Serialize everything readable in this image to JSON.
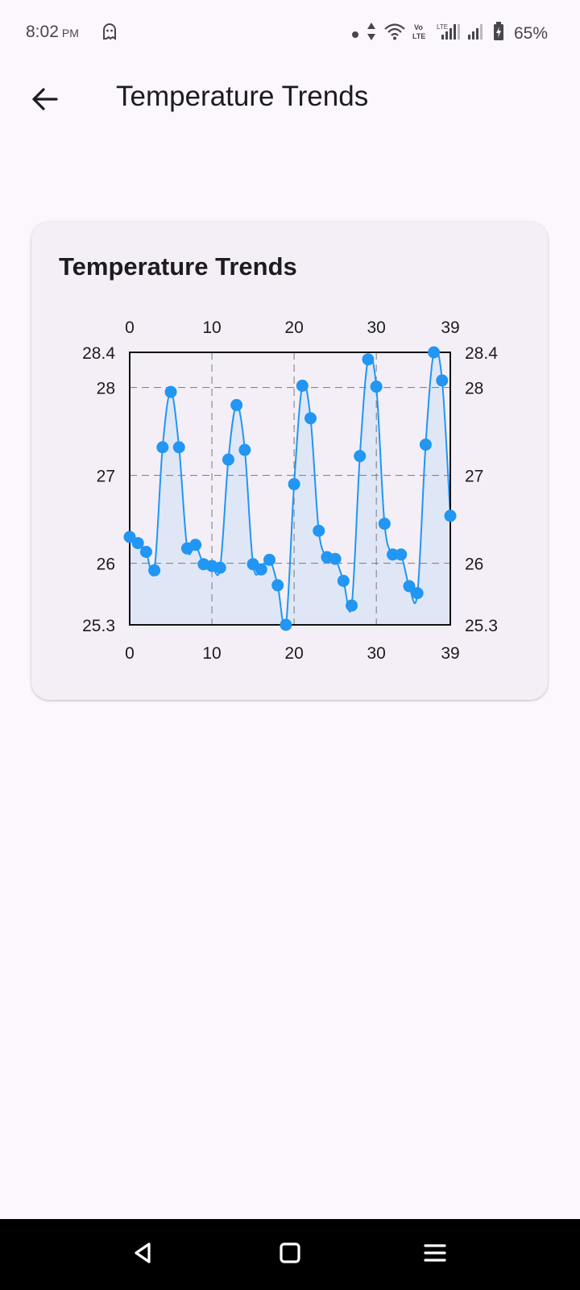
{
  "status_bar": {
    "time": "8:02",
    "ampm": "PM",
    "battery": "65%",
    "icons": [
      "ghost-icon",
      "dot-icon",
      "data-arrows-icon",
      "wifi-icon",
      "volte-icon",
      "lte-signal-icon",
      "signal-icon",
      "battery-charging-icon"
    ]
  },
  "app_bar": {
    "title": "Temperature Trends",
    "back_icon": "arrow-left-icon"
  },
  "card": {
    "title": "Temperature Trends"
  },
  "chart_data": {
    "type": "line",
    "title": "Temperature Trends",
    "xlabel": "",
    "ylabel": "",
    "x": [
      0,
      1,
      2,
      3,
      4,
      5,
      6,
      7,
      8,
      9,
      10,
      11,
      12,
      13,
      14,
      15,
      16,
      17,
      18,
      19,
      20,
      21,
      22,
      23,
      24,
      25,
      26,
      27,
      28,
      29,
      30,
      31,
      32,
      33,
      34,
      35,
      36,
      37,
      38,
      39
    ],
    "series": [
      {
        "values": [
          26.3,
          26.23,
          26.13,
          25.92,
          27.32,
          27.95,
          27.32,
          26.17,
          26.21,
          25.99,
          25.97,
          25.95,
          27.18,
          27.8,
          27.29,
          25.99,
          25.93,
          26.04,
          25.75,
          25.3,
          26.9,
          28.02,
          27.65,
          26.37,
          26.07,
          26.05,
          25.8,
          25.52,
          27.22,
          28.32,
          28.01,
          26.45,
          26.1,
          26.1,
          25.74,
          25.66,
          27.35,
          28.4,
          28.08,
          26.54
        ]
      }
    ],
    "xlim": [
      0,
      39
    ],
    "ylim": [
      25.3,
      28.4
    ],
    "x_ticks": [
      "0",
      "10",
      "20",
      "30",
      "39"
    ],
    "y_ticks": [
      "25.3",
      "26",
      "27",
      "28",
      "28.4"
    ],
    "grid": true,
    "area_fill": true,
    "line_color": "#2196f3",
    "fill_color": "#dfe7f7"
  },
  "nav_bar": {
    "icons": [
      "back-triangle-icon",
      "home-square-icon",
      "menu-lines-icon"
    ]
  }
}
